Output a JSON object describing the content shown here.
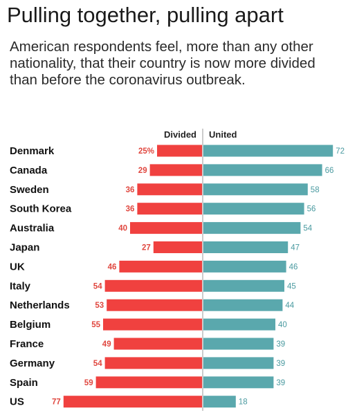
{
  "title": "Pulling together, pulling apart",
  "subtitle": "American respondents feel, more than any other nationality, that their country is now more divided than before the coronavirus outbreak.",
  "colors": {
    "divided": "#f0413f",
    "united": "#5aa8ad",
    "divider": "#999999"
  },
  "chart_data": {
    "type": "bar",
    "orientation": "horizontal-diverging",
    "categories": [
      "Denmark",
      "Canada",
      "Sweden",
      "South Korea",
      "Australia",
      "Japan",
      "UK",
      "Italy",
      "Netherlands",
      "Belgium",
      "France",
      "Germany",
      "Spain",
      "US"
    ],
    "series": [
      {
        "name": "Divided",
        "values": [
          25,
          29,
          36,
          36,
          40,
          27,
          46,
          54,
          53,
          55,
          49,
          54,
          59,
          77
        ],
        "labels": [
          "25%",
          "29",
          "36",
          "36",
          "40",
          "27",
          "46",
          "54",
          "53",
          "55",
          "49",
          "54",
          "59",
          "77"
        ]
      },
      {
        "name": "United",
        "values": [
          72,
          66,
          58,
          56,
          54,
          47,
          46,
          45,
          44,
          40,
          39,
          39,
          39,
          18
        ],
        "labels": [
          "72",
          "66",
          "58",
          "56",
          "54",
          "47",
          "46",
          "45",
          "44",
          "40",
          "39",
          "39",
          "39",
          "18"
        ]
      }
    ],
    "unit": "%"
  }
}
